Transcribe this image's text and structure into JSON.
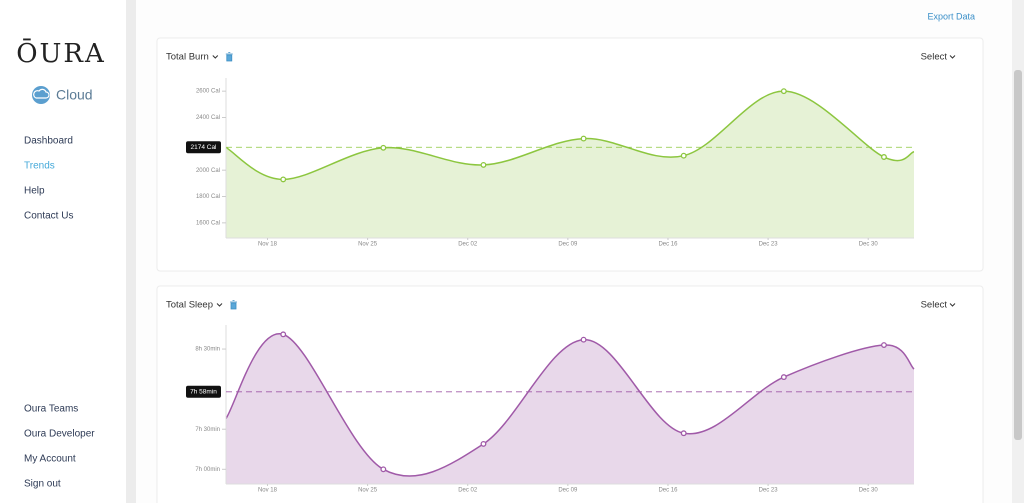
{
  "sidebar": {
    "logo": "ŌURA",
    "product": "Cloud",
    "nav": [
      "Dashboard",
      "Trends",
      "Help",
      "Contact Us"
    ],
    "active": 1,
    "bottom_nav": [
      "Oura Teams",
      "Oura Developer",
      "My Account",
      "Sign out"
    ]
  },
  "export": "Export Data",
  "chart_data": [
    {
      "type": "area",
      "title": "Total Burn",
      "select": "Select",
      "color": "#8cc63f",
      "fill": "#e6f2d6",
      "x": [
        -2.9,
        1.1,
        8.1,
        15.1,
        22.1,
        29.1,
        36.1,
        43.1,
        45.2
      ],
      "values": [
        2172,
        1930,
        2170,
        2040,
        2240,
        2110,
        2600,
        2100,
        2140
      ],
      "xlim": [
        -2.9,
        45.2
      ],
      "xticks": [
        {
          "value": 0,
          "label": "Nov 18"
        },
        {
          "value": 7,
          "label": "Nov 25"
        },
        {
          "value": 14,
          "label": "Dec 02"
        },
        {
          "value": 21,
          "label": "Dec 09"
        },
        {
          "value": 28,
          "label": "Dec 16"
        },
        {
          "value": 35,
          "label": "Dec 23"
        },
        {
          "value": 42,
          "label": "Dec 30"
        }
      ],
      "ylim": [
        1485,
        2700
      ],
      "yticks": [
        {
          "value": 1600,
          "label": "1600 Cal"
        },
        {
          "value": 1800,
          "label": "1800 Cal"
        },
        {
          "value": 2000,
          "label": "2000 Cal"
        },
        {
          "value": 2400,
          "label": "2400 Cal"
        },
        {
          "value": 2600,
          "label": "2600 Cal"
        }
      ],
      "average": {
        "value": 2174,
        "label": "2174 Cal"
      }
    },
    {
      "type": "area",
      "title": "Total Sleep",
      "select": "Select",
      "color": "#a05aa8",
      "fill": "#e8d8ea",
      "x": [
        -2.9,
        1.1,
        8.1,
        15.1,
        22.1,
        29.1,
        36.1,
        43.1,
        45.2
      ],
      "values": [
        458,
        521,
        420,
        439,
        517,
        447,
        489,
        513,
        495
      ],
      "xlim": [
        -2.9,
        45.2
      ],
      "xticks": [
        {
          "value": 0,
          "label": "Nov 18"
        },
        {
          "value": 7,
          "label": "Nov 25"
        },
        {
          "value": 14,
          "label": "Dec 02"
        },
        {
          "value": 21,
          "label": "Dec 09"
        },
        {
          "value": 28,
          "label": "Dec 16"
        },
        {
          "value": 35,
          "label": "Dec 23"
        },
        {
          "value": 42,
          "label": "Dec 30"
        }
      ],
      "ylim": [
        409,
        528
      ],
      "yticks": [
        {
          "value": 420,
          "label": "7h 00min"
        },
        {
          "value": 450,
          "label": "7h 30min"
        },
        {
          "value": 510,
          "label": "8h 30min"
        }
      ],
      "average": {
        "value": 478,
        "label": "7h 58min"
      }
    }
  ]
}
